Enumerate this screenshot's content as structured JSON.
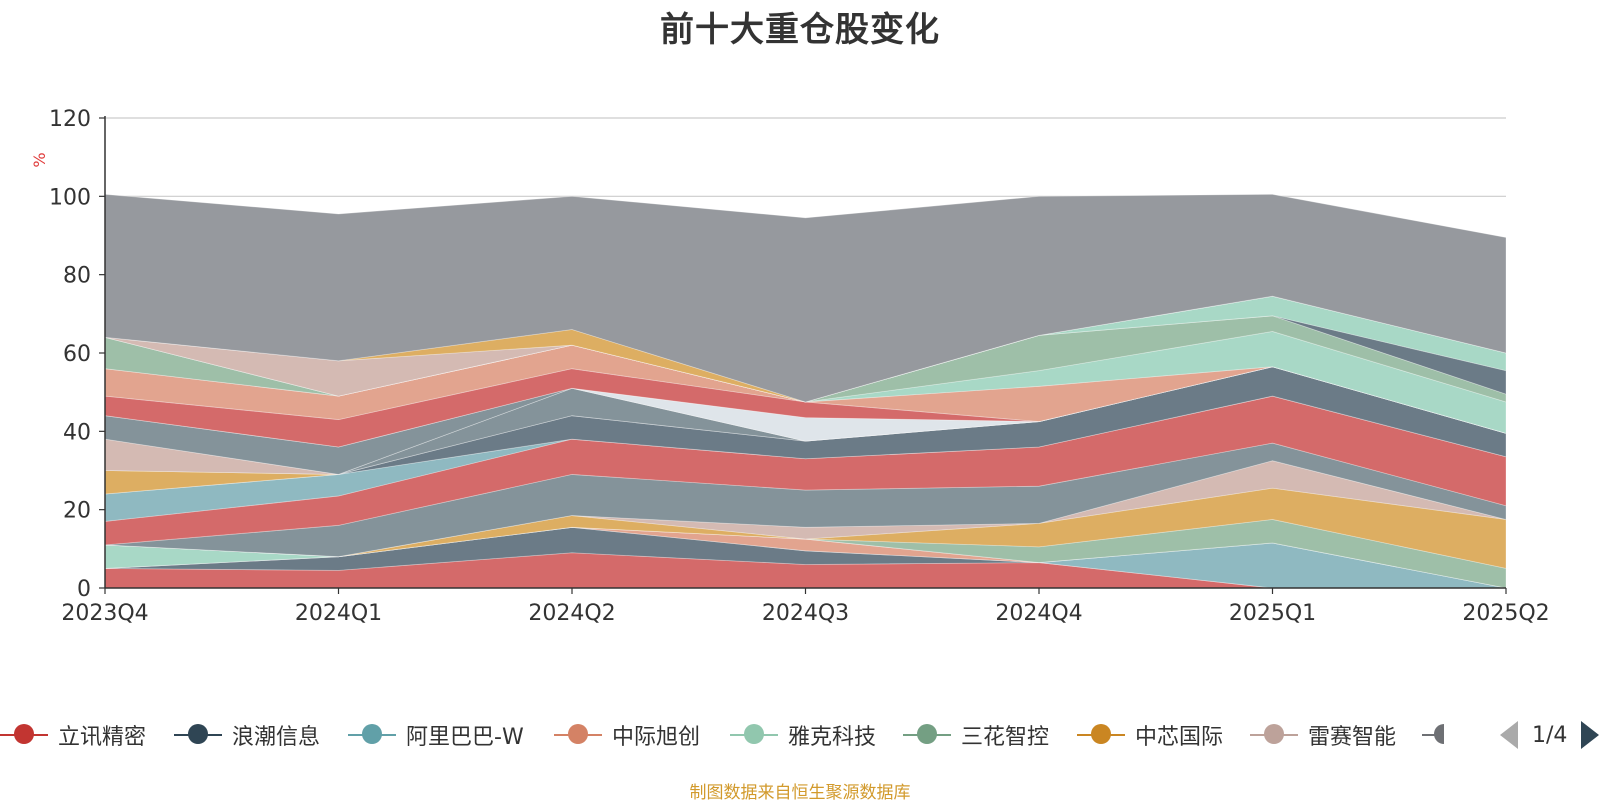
{
  "chart_data": {
    "type": "area",
    "title": "前十大重仓股变化",
    "ylabel": "%",
    "xlabel": "",
    "ylim": [
      0,
      120
    ],
    "yticks": [
      0,
      20,
      40,
      60,
      80,
      100,
      120
    ],
    "stacked": true,
    "grid": true,
    "legend_position": "bottom",
    "x": [
      "2023Q4",
      "2024Q1",
      "2024Q2",
      "2024Q3",
      "2024Q4",
      "2025Q1",
      "2025Q2"
    ],
    "series": [
      {
        "name": "立讯精密",
        "color": "#d46a6a",
        "values": [
          5,
          4.5,
          9,
          6,
          6.5,
          0,
          0
        ]
      },
      {
        "name": "浪潮信息",
        "color": "#6b7b87",
        "values": [
          0,
          3.5,
          6.5,
          3.5,
          0,
          0,
          0
        ]
      },
      {
        "name": "阿里巴巴-W",
        "color": "#8fb9c1",
        "values": [
          0,
          0,
          0,
          0,
          0,
          11.5,
          0
        ]
      },
      {
        "name": "中际旭创",
        "color": "#e2a48f",
        "values": [
          0,
          0,
          0,
          3,
          0,
          0,
          0
        ]
      },
      {
        "name": "雅克科技",
        "color": "#a8d8c6",
        "values": [
          6,
          0,
          0,
          0,
          0,
          0,
          0
        ]
      },
      {
        "name": "三花智控",
        "color": "#9ebfa8",
        "values": [
          0,
          0,
          0,
          0,
          4,
          6,
          5
        ]
      },
      {
        "name": "中芯国际",
        "color": "#ddae62",
        "values": [
          0,
          0,
          3,
          0,
          6,
          8,
          12.5
        ]
      },
      {
        "name": "雷赛智能",
        "color": "#d4bab3",
        "values": [
          0,
          0,
          0,
          3,
          0,
          7,
          0
        ]
      },
      {
        "name": "",
        "color": "#84939a",
        "values": [
          0,
          8,
          10.5,
          9.5,
          9.5,
          4.5,
          3.5
        ]
      },
      {
        "name": "",
        "color": "#d46a6a",
        "values": [
          6,
          7.5,
          9,
          8,
          10,
          12,
          12.5
        ]
      },
      {
        "name": "",
        "color": "#8fb9c1",
        "values": [
          7,
          5.5,
          0,
          0,
          0,
          0,
          0
        ]
      },
      {
        "name": "",
        "color": "#6b7b87",
        "values": [
          0,
          0,
          6,
          4.5,
          6.5,
          7.5,
          6
        ]
      },
      {
        "name": "",
        "color": "#ddae62",
        "values": [
          6,
          0,
          0,
          0,
          0,
          0,
          0
        ]
      },
      {
        "name": "",
        "color": "#84939a",
        "values": [
          0,
          0,
          7,
          0,
          0,
          0,
          0
        ]
      },
      {
        "name": "",
        "color": "#d4bab3",
        "values": [
          8,
          0,
          0,
          0,
          0,
          0,
          0
        ]
      },
      {
        "name": "",
        "color": "#84939a",
        "values": [
          6,
          7,
          0,
          0,
          0,
          0,
          0
        ]
      },
      {
        "name": "",
        "color": "#dfe5ea",
        "values": [
          0,
          0,
          0,
          6,
          0,
          0,
          0
        ]
      },
      {
        "name": "",
        "color": "#d46a6a",
        "values": [
          5,
          7,
          5,
          4,
          0,
          0,
          0
        ]
      },
      {
        "name": "",
        "color": "#e2a48f",
        "values": [
          7,
          6,
          6,
          0,
          9,
          0,
          0
        ]
      },
      {
        "name": "",
        "color": "#a8d8c6",
        "values": [
          0,
          0,
          0,
          0,
          4,
          9,
          8
        ]
      },
      {
        "name": "",
        "color": "#9ebfa8",
        "values": [
          8,
          0,
          0,
          0,
          9,
          4,
          2
        ]
      },
      {
        "name": "",
        "color": "#6b7b87",
        "values": [
          0,
          0,
          0,
          0,
          0,
          0,
          6
        ]
      },
      {
        "name": "",
        "color": "#a8d8c6",
        "values": [
          0,
          0,
          0,
          0,
          0,
          5,
          4.5
        ]
      },
      {
        "name": "",
        "color": "#d4bab3",
        "values": [
          0,
          9,
          0,
          0,
          0,
          0,
          0
        ]
      },
      {
        "name": "",
        "color": "#ddae62",
        "values": [
          0,
          0,
          4,
          0,
          0,
          0,
          0
        ]
      },
      {
        "name": "",
        "color": "#96999e",
        "values": [
          36.5,
          37.5,
          34,
          47,
          35.5,
          26,
          29.5
        ]
      }
    ]
  },
  "legend": {
    "items": [
      {
        "label": "立讯精密",
        "color": "#c23531"
      },
      {
        "label": "浪潮信息",
        "color": "#2f4554"
      },
      {
        "label": "阿里巴巴-W",
        "color": "#61a0a8"
      },
      {
        "label": "中际旭创",
        "color": "#d48265"
      },
      {
        "label": "雅克科技",
        "color": "#91c7ae"
      },
      {
        "label": "三花智控",
        "color": "#749f83"
      },
      {
        "label": "中芯国际",
        "color": "#ca8622"
      },
      {
        "label": "雷赛智能",
        "color": "#bda29a"
      }
    ],
    "partial_color": "#6e7074",
    "page_text": "1/4"
  },
  "source_note": "制图数据来自恒生聚源数据库"
}
